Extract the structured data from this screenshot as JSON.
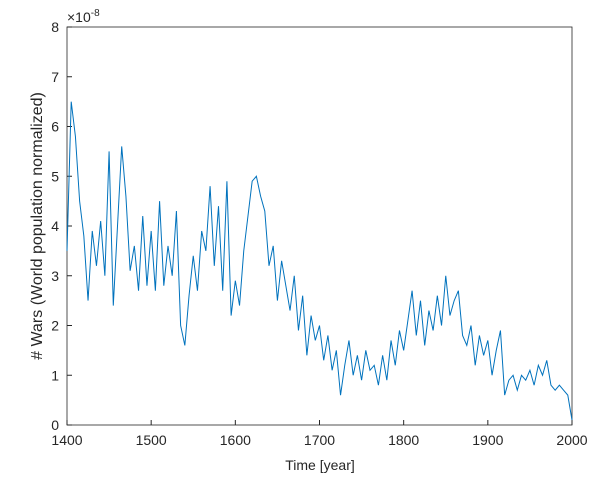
{
  "chart_data": {
    "type": "line",
    "xlabel": "Time [year]",
    "ylabel": "# Wars (World population normalized)",
    "y_exponent": {
      "base": "×10",
      "power": "-8"
    },
    "xlim": [
      1400,
      2000
    ],
    "xticks": [
      1400,
      1500,
      1600,
      1700,
      1800,
      1900,
      2000
    ],
    "ylim": [
      0,
      8
    ],
    "yticks": [
      0,
      1,
      2,
      3,
      4,
      5,
      6,
      7,
      8
    ],
    "grid": false,
    "series": [
      {
        "color": "#0072bd",
        "x": [
          1400,
          1405,
          1410,
          1415,
          1420,
          1425,
          1430,
          1435,
          1440,
          1445,
          1450,
          1455,
          1460,
          1465,
          1470,
          1475,
          1480,
          1485,
          1490,
          1495,
          1500,
          1505,
          1510,
          1515,
          1520,
          1525,
          1530,
          1535,
          1540,
          1545,
          1550,
          1555,
          1560,
          1565,
          1570,
          1575,
          1580,
          1585,
          1590,
          1595,
          1600,
          1605,
          1610,
          1615,
          1620,
          1625,
          1630,
          1635,
          1640,
          1645,
          1650,
          1655,
          1660,
          1665,
          1670,
          1675,
          1680,
          1685,
          1690,
          1695,
          1700,
          1705,
          1710,
          1715,
          1720,
          1725,
          1730,
          1735,
          1740,
          1745,
          1750,
          1755,
          1760,
          1765,
          1770,
          1775,
          1780,
          1785,
          1790,
          1795,
          1800,
          1805,
          1810,
          1815,
          1820,
          1825,
          1830,
          1835,
          1840,
          1845,
          1850,
          1855,
          1860,
          1865,
          1870,
          1875,
          1880,
          1885,
          1890,
          1895,
          1900,
          1905,
          1910,
          1915,
          1920,
          1925,
          1930,
          1935,
          1940,
          1945,
          1950,
          1955,
          1960,
          1965,
          1970,
          1975,
          1980,
          1985,
          1990,
          1995,
          2000
        ],
        "values": [
          3.5,
          6.5,
          5.8,
          4.5,
          3.8,
          2.5,
          3.9,
          3.2,
          4.1,
          3.0,
          5.5,
          2.4,
          4.0,
          5.6,
          4.6,
          3.1,
          3.6,
          2.7,
          4.2,
          2.8,
          3.9,
          2.7,
          4.5,
          2.8,
          3.6,
          3.0,
          4.3,
          2.0,
          1.6,
          2.6,
          3.4,
          2.7,
          3.9,
          3.5,
          4.8,
          3.2,
          4.4,
          2.7,
          4.9,
          2.2,
          2.9,
          2.4,
          3.5,
          4.2,
          4.9,
          5.0,
          4.6,
          4.3,
          3.2,
          3.6,
          2.5,
          3.3,
          2.8,
          2.3,
          3.0,
          1.9,
          2.6,
          1.4,
          2.2,
          1.7,
          2.0,
          1.3,
          1.8,
          1.1,
          1.5,
          0.6,
          1.2,
          1.7,
          1.0,
          1.4,
          0.9,
          1.5,
          1.1,
          1.2,
          0.8,
          1.4,
          0.9,
          1.7,
          1.2,
          1.9,
          1.5,
          2.1,
          2.7,
          1.8,
          2.5,
          1.6,
          2.3,
          1.9,
          2.6,
          2.0,
          3.0,
          2.2,
          2.5,
          2.7,
          1.8,
          1.6,
          2.0,
          1.2,
          1.8,
          1.4,
          1.7,
          1.0,
          1.5,
          1.9,
          0.6,
          0.9,
          1.0,
          0.7,
          1.0,
          0.9,
          1.1,
          0.8,
          1.2,
          1.0,
          1.3,
          0.8,
          0.7,
          0.8,
          0.7,
          0.6,
          0.1
        ]
      }
    ]
  }
}
